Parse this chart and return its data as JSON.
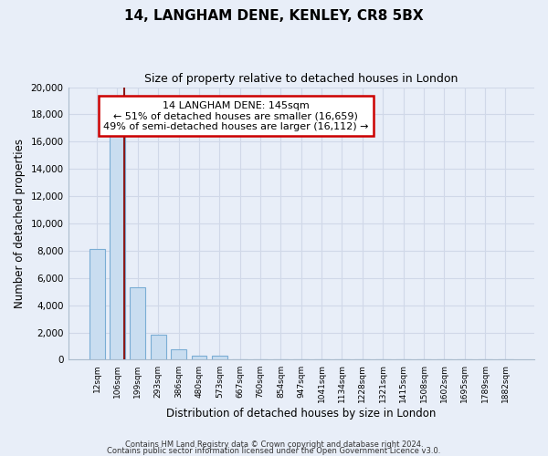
{
  "title": "14, LANGHAM DENE, KENLEY, CR8 5BX",
  "subtitle": "Size of property relative to detached houses in London",
  "xlabel": "Distribution of detached houses by size in London",
  "ylabel": "Number of detached properties",
  "categories": [
    "12sqm",
    "106sqm",
    "199sqm",
    "293sqm",
    "386sqm",
    "480sqm",
    "573sqm",
    "667sqm",
    "760sqm",
    "854sqm",
    "947sqm",
    "1041sqm",
    "1134sqm",
    "1228sqm",
    "1321sqm",
    "1415sqm",
    "1508sqm",
    "1602sqm",
    "1695sqm",
    "1789sqm",
    "1882sqm"
  ],
  "bar_values": [
    8150,
    16600,
    5300,
    1850,
    800,
    310,
    270,
    0,
    0,
    0,
    0,
    0,
    0,
    0,
    0,
    0,
    0,
    0,
    0,
    0,
    0
  ],
  "bar_color": "#c9ddf0",
  "bar_edge_color": "#7aadd4",
  "marker_line_color": "#8b1a1a",
  "annotation_text_line1": "14 LANGHAM DENE: 145sqm",
  "annotation_text_line2": "← 51% of detached houses are smaller (16,659)",
  "annotation_text_line3": "49% of semi-detached houses are larger (16,112) →",
  "annotation_box_color": "#ffffff",
  "annotation_box_edge_color": "#cc0000",
  "ylim": [
    0,
    20000
  ],
  "yticks": [
    0,
    2000,
    4000,
    6000,
    8000,
    10000,
    12000,
    14000,
    16000,
    18000,
    20000
  ],
  "background_color": "#e8eef8",
  "grid_color": "#d0d8e8",
  "footer_line1": "Contains HM Land Registry data © Crown copyright and database right 2024.",
  "footer_line2": "Contains public sector information licensed under the Open Government Licence v3.0."
}
